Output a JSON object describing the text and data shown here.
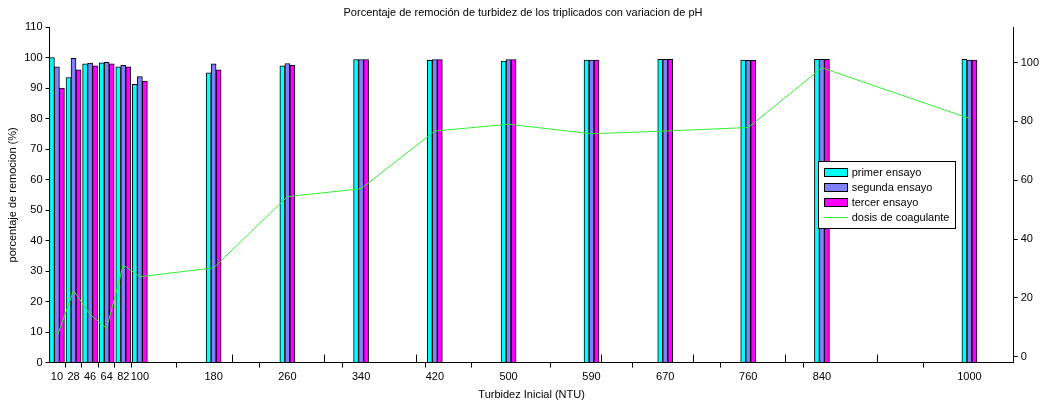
{
  "chart_data": {
    "type": "bar",
    "title": "Porcentaje de remoción de turbidez de los triplicados con variacion de pH",
    "xlabel": "Turbidez Inicial (NTU)",
    "ylabel": "porcentaje de remocion (%)",
    "x": [
      10,
      28,
      46,
      64,
      82,
      100,
      180,
      260,
      340,
      420,
      500,
      590,
      670,
      760,
      840,
      1000
    ],
    "series": [
      {
        "name": "primer ensayo",
        "color": "#00ffff",
        "values": [
          100,
          93.5,
          98,
          98.3,
          97,
          91.3,
          95,
          97.3,
          99.4,
          99.1,
          98.9,
          99.2,
          99.5,
          99.2,
          99.5,
          99.5
        ]
      },
      {
        "name": "segunda ensayo",
        "color": "#8080ff",
        "values": [
          97,
          99.8,
          98.2,
          98.5,
          97.5,
          93.8,
          98,
          98.1,
          99.4,
          99.4,
          99.4,
          99.2,
          99.5,
          99.1,
          99.5,
          99.2
        ]
      },
      {
        "name": "tercer ensayo",
        "color": "#ff00ff",
        "values": [
          90,
          96,
          97.3,
          98,
          97,
          92.3,
          96,
          97.5,
          99.4,
          99.4,
          99.4,
          99.2,
          99.5,
          99.1,
          99.5,
          99.2
        ]
      },
      {
        "name": "dosis de coagulante",
        "type": "line",
        "axis": "y2",
        "color": "#33ee33",
        "values": [
          6.7,
          22.5,
          14.4,
          9.7,
          31.2,
          27.2,
          30.2,
          54.4,
          57.1,
          76.7,
          79,
          75.8,
          76.7,
          77.9,
          98.2,
          81
        ]
      }
    ],
    "xlim": [
      2,
      1048
    ],
    "xticks": [
      10,
      28,
      46,
      64,
      82,
      100,
      180,
      {
        "value": 200,
        "label": null
      },
      260,
      {
        "value": 300,
        "label": null
      },
      340,
      {
        "value": 400,
        "label": null
      },
      420,
      500,
      590,
      {
        "value": 600,
        "label": null
      },
      670,
      {
        "value": 700,
        "label": null
      },
      760,
      {
        "value": 800,
        "label": null
      },
      840,
      {
        "value": 900,
        "label": null
      },
      1000
    ],
    "ylim": [
      0,
      110
    ],
    "yticks": [
      0,
      10,
      20,
      30,
      40,
      50,
      60,
      70,
      80,
      90,
      100,
      110
    ],
    "y2lim": [
      -2,
      112
    ],
    "y2ticks": [
      0,
      20,
      40,
      60,
      80,
      100
    ],
    "marker": "none",
    "legend": "right",
    "grid": false
  }
}
